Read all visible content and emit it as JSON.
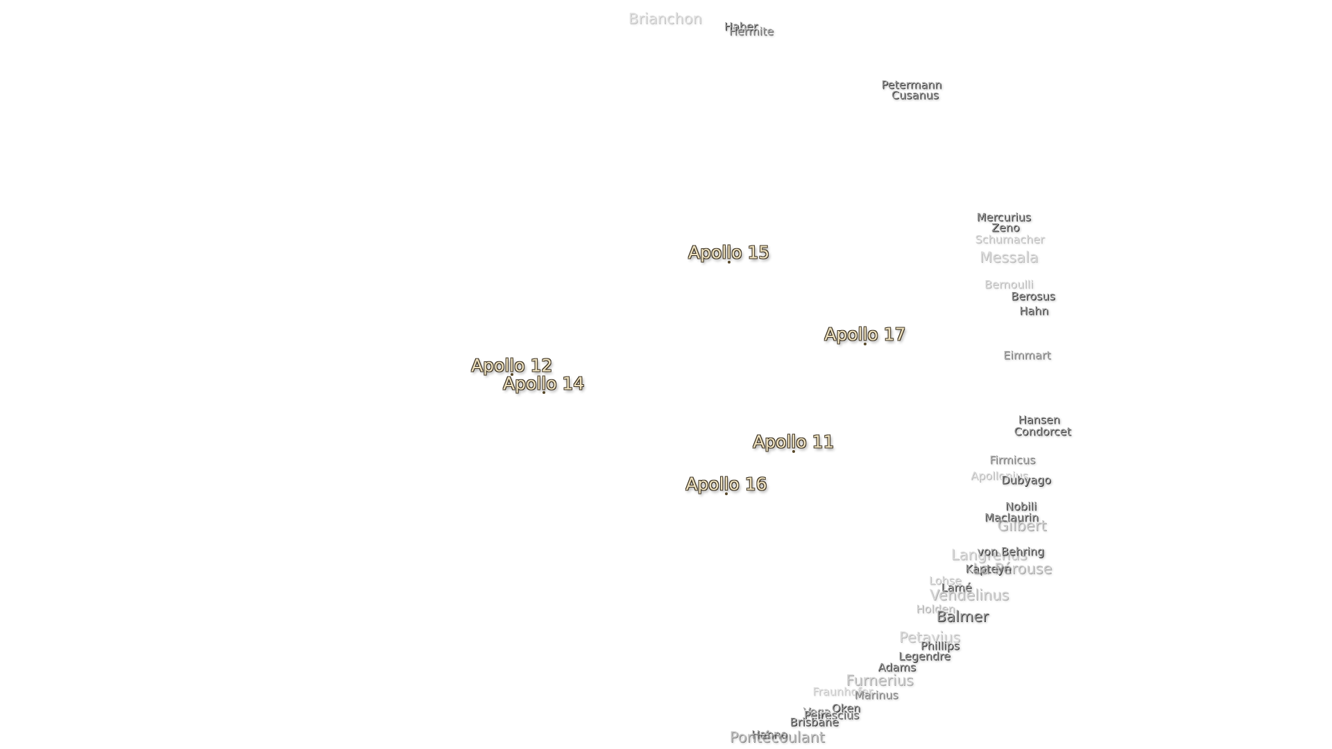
{
  "landing_sites": [
    {
      "label": "Apollo 15"
    },
    {
      "label": "Apollo 17"
    },
    {
      "label": "Apollo 12"
    },
    {
      "label": "Apollo 14"
    },
    {
      "label": "Apollo 11"
    },
    {
      "label": "Apollo 16"
    }
  ],
  "craters": [
    {
      "label": "Brianchon"
    },
    {
      "label": "Haber"
    },
    {
      "label": "Hermite"
    },
    {
      "label": "Petermann"
    },
    {
      "label": "Cusanus"
    },
    {
      "label": "Mercurius"
    },
    {
      "label": "Zeno"
    },
    {
      "label": "Schumacher"
    },
    {
      "label": "Messala"
    },
    {
      "label": "Bernoulli"
    },
    {
      "label": "Berosus"
    },
    {
      "label": "Hahn"
    },
    {
      "label": "Eimmart"
    },
    {
      "label": "Hansen"
    },
    {
      "label": "Condorcet"
    },
    {
      "label": "Firmicus"
    },
    {
      "label": "Apollonius"
    },
    {
      "label": "Dubyago"
    },
    {
      "label": "Nobili"
    },
    {
      "label": "Maclaurin"
    },
    {
      "label": "Gilbert"
    },
    {
      "label": "Langrenus"
    },
    {
      "label": "von Behring"
    },
    {
      "label": "Kapteyn"
    },
    {
      "label": "La Pérouse"
    },
    {
      "label": "Lohse"
    },
    {
      "label": "Lamé"
    },
    {
      "label": "Vendelinus"
    },
    {
      "label": "Holden"
    },
    {
      "label": "Balmer"
    },
    {
      "label": "Petavius"
    },
    {
      "label": "Phillips"
    },
    {
      "label": "Legendre"
    },
    {
      "label": "Adams"
    },
    {
      "label": "Furnerius"
    },
    {
      "label": "Fraunhofer"
    },
    {
      "label": "Marinus"
    },
    {
      "label": "Oken"
    },
    {
      "label": "Vega"
    },
    {
      "label": "Peirescius"
    },
    {
      "label": "Brisbane"
    },
    {
      "label": "Hanno"
    },
    {
      "label": "Pontécoulant"
    }
  ]
}
